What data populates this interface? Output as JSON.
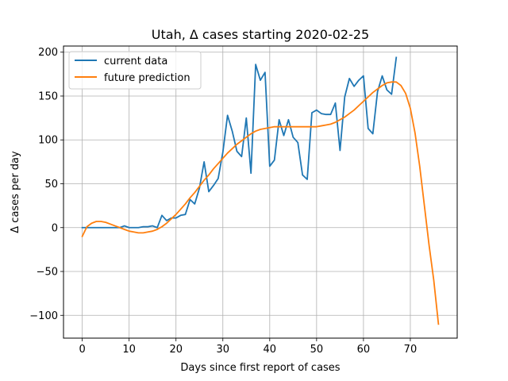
{
  "chart_data": {
    "type": "line",
    "title": "Utah, Δ cases starting 2020-02-25",
    "xlabel": "Days since first report of cases",
    "ylabel": "Δ cases per day",
    "xlim": [
      -4,
      80
    ],
    "ylim": [
      -126,
      207
    ],
    "xticks": [
      0,
      10,
      20,
      30,
      40,
      50,
      60,
      70
    ],
    "yticks": [
      -100,
      -50,
      0,
      50,
      100,
      150,
      200
    ],
    "ytick_labels": [
      "−100",
      "−50",
      "0",
      "50",
      "100",
      "150",
      "200"
    ],
    "grid": true,
    "legend_position": "upper-left",
    "series": [
      {
        "name": "current data",
        "color": "#1f77b4",
        "x": [
          0,
          1,
          2,
          3,
          4,
          5,
          6,
          7,
          8,
          9,
          10,
          11,
          12,
          13,
          14,
          15,
          16,
          17,
          18,
          19,
          20,
          21,
          22,
          23,
          24,
          25,
          26,
          27,
          28,
          29,
          30,
          31,
          32,
          33,
          34,
          35,
          36,
          37,
          38,
          39,
          40,
          41,
          42,
          43,
          44,
          45,
          46,
          47,
          48,
          49,
          50,
          51,
          52,
          53,
          54,
          55,
          56,
          57,
          58,
          59,
          60,
          61,
          62,
          63,
          64,
          65,
          66,
          67
        ],
        "y": [
          0,
          0,
          0,
          0,
          0,
          0,
          0,
          0,
          0,
          2,
          0,
          0,
          0,
          1,
          1,
          2,
          0,
          14,
          8,
          11,
          11,
          14,
          15,
          32,
          27,
          45,
          75,
          41,
          48,
          56,
          86,
          128,
          110,
          87,
          81,
          125,
          62,
          186,
          168,
          177,
          70,
          77,
          123,
          105,
          123,
          103,
          97,
          60,
          55,
          131,
          134,
          130,
          129,
          129,
          142,
          88,
          149,
          170,
          161,
          168,
          173,
          113,
          107,
          155,
          173,
          157,
          152,
          194
        ]
      },
      {
        "name": "future prediction",
        "color": "#ff7f0e",
        "x": [
          0,
          1,
          2,
          3,
          4,
          5,
          6,
          7,
          8,
          9,
          10,
          11,
          12,
          13,
          14,
          15,
          16,
          17,
          18,
          19,
          20,
          21,
          22,
          23,
          24,
          25,
          26,
          27,
          28,
          29,
          30,
          31,
          32,
          33,
          34,
          35,
          36,
          37,
          38,
          39,
          40,
          41,
          42,
          43,
          44,
          45,
          46,
          47,
          48,
          49,
          50,
          51,
          52,
          53,
          54,
          55,
          56,
          57,
          58,
          59,
          60,
          61,
          62,
          63,
          64,
          65,
          66,
          67,
          68,
          69,
          70,
          71,
          72,
          73,
          74,
          75,
          76
        ],
        "y": [
          -10,
          1,
          5,
          7,
          7,
          6,
          4,
          2,
          0,
          -2,
          -4,
          -5,
          -6,
          -6,
          -5,
          -4,
          -2,
          1,
          5,
          10,
          15,
          21,
          27,
          34,
          40,
          47,
          54,
          60,
          67,
          73,
          79,
          85,
          90,
          95,
          99,
          103,
          107,
          110,
          112,
          113,
          114,
          115,
          115,
          115,
          115,
          115,
          115,
          115,
          115,
          115,
          115,
          116,
          117,
          118,
          120,
          123,
          126,
          130,
          134,
          139,
          144,
          149,
          154,
          158,
          162,
          165,
          166,
          166,
          162,
          153,
          136,
          108,
          70,
          25,
          -20,
          -60,
          -110
        ]
      }
    ]
  }
}
